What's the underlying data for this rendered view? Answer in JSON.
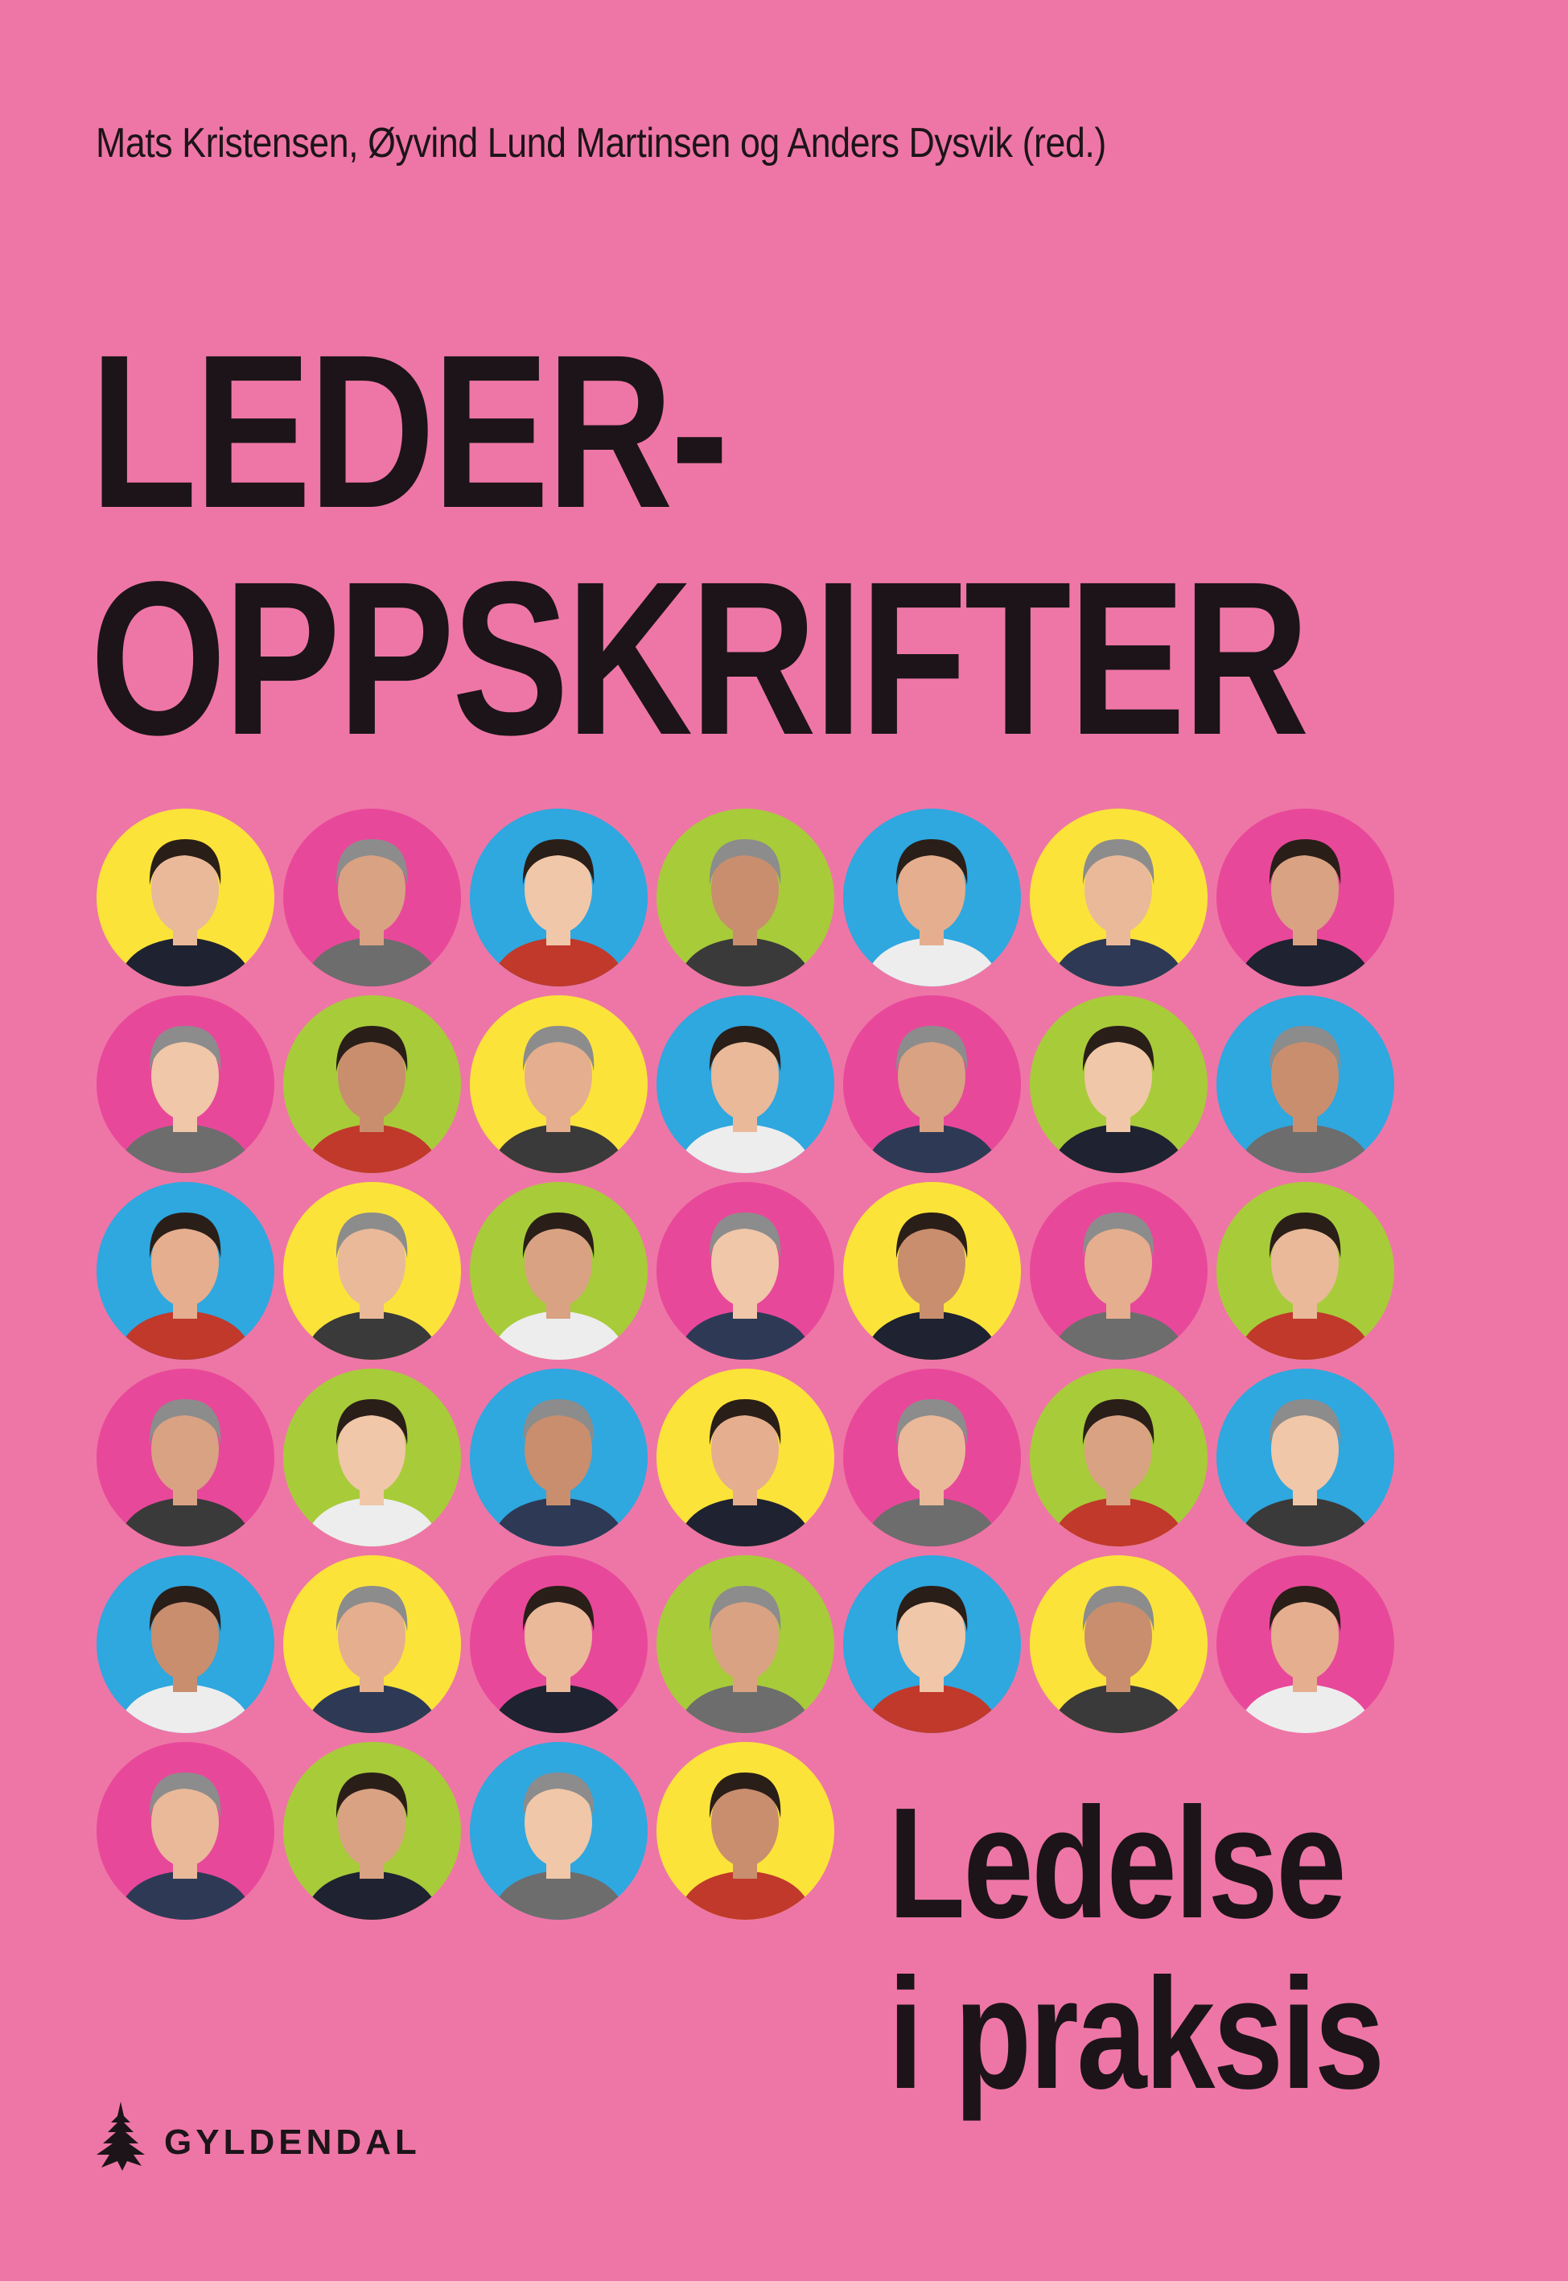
{
  "cover": {
    "authors": "Mats Kristensen, Øyvind Lund Martinsen og Anders Dysvik (red.)",
    "title_line1": "LEDER-",
    "title_line2": "OPPSKRIFTER",
    "subtitle_line1": "Ledelse",
    "subtitle_line2": "i praksis",
    "publisher": "GYLDENDAL",
    "publisher_icon": "fir-tree-icon"
  },
  "colors": {
    "background": "#EE76A6",
    "text": "#1C1418",
    "yellow": "#FCE33A",
    "pink": "#E8489A",
    "blue": "#2FA7DF",
    "green": "#A8CB3A"
  },
  "portrait_grid": [
    [
      "yellow",
      "pink",
      "blue",
      "green",
      "blue",
      "yellow",
      "pink"
    ],
    [
      "pink",
      "green",
      "yellow",
      "blue",
      "pink",
      "green",
      "blue"
    ],
    [
      "blue",
      "yellow",
      "green",
      "pink",
      "yellow",
      "pink",
      "green"
    ],
    [
      "pink",
      "green",
      "blue",
      "yellow",
      "pink",
      "green",
      "blue"
    ],
    [
      "blue",
      "yellow",
      "pink",
      "green",
      "blue",
      "yellow",
      "pink"
    ],
    [
      "pink",
      "green",
      "blue",
      "yellow"
    ]
  ]
}
